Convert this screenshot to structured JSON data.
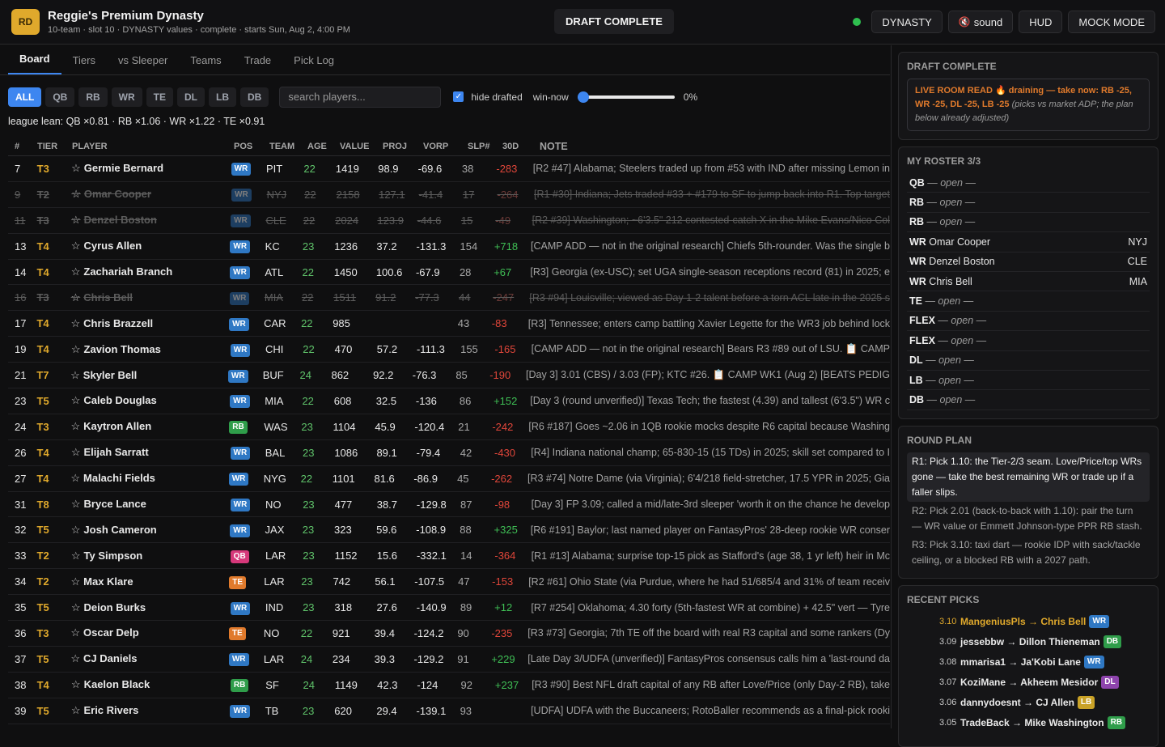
{
  "header": {
    "logo": "RD",
    "title": "Reggie's Premium Dynasty",
    "subtitle": "10-team · slot 10 · DYNASTY values · complete · starts Sun, Aug 2, 4:00 PM",
    "status_pill": "DRAFT COMPLETE",
    "btn_dynasty": "DYNASTY",
    "btn_sound": "sound",
    "btn_hud": "HUD",
    "btn_mock": "MOCK MODE",
    "status_dot_color": "#2fbf4f"
  },
  "tabs": [
    "Board",
    "Tiers",
    "vs Sleeper",
    "Teams",
    "Trade",
    "Pick Log"
  ],
  "filters": [
    "ALL",
    "QB",
    "RB",
    "WR",
    "TE",
    "DL",
    "LB",
    "DB"
  ],
  "search_placeholder": "search players...",
  "hide_drafted": "hide drafted",
  "win_now_label": "win-now",
  "win_now_value": "0%",
  "win_now_fraction": 0,
  "league_lean": "league lean: QB ×0.81 · RB ×1.06 · WR ×1.22 · TE ×0.91",
  "columns": [
    "#",
    "TIER",
    "PLAYER",
    "POS",
    "TEAM",
    "AGE",
    "VALUE",
    "PROJ",
    "VORP",
    "SLP#",
    "30D",
    "NOTE"
  ],
  "pos_colors": {
    "WR": "#2f78c4",
    "RB": "#2f9d4a",
    "QB": "#d6387a",
    "TE": "#e07a2c"
  },
  "rows": [
    {
      "n": "7",
      "tier": "T3",
      "player": "Germie Bernard",
      "pos": "WR",
      "team": "PIT",
      "age": "22",
      "value": "1419",
      "proj": "98.9",
      "vorp": "-69.6",
      "slp": "38",
      "d30": "-283",
      "note": "[R2 #47] Alabama; Steelers traded up from #53 with IND after missing Lemon in",
      "drafted": false
    },
    {
      "n": "9",
      "tier": "T2",
      "player": "Omar Cooper",
      "pos": "WR",
      "team": "NYJ",
      "age": "22",
      "value": "2158",
      "proj": "127.1",
      "vorp": "-41.4",
      "slp": "17",
      "d30": "-264",
      "note": "[R1 #30] Indiana; Jets traded #33 + #179 to SF to jump back into R1. Top target",
      "drafted": true
    },
    {
      "n": "11",
      "tier": "T3",
      "player": "Denzel Boston",
      "pos": "WR",
      "team": "CLE",
      "age": "22",
      "value": "2024",
      "proj": "123.9",
      "vorp": "-44.6",
      "slp": "15",
      "d30": "-49",
      "note": "[R2 #39] Washington; ~6'3.5\" 212 contested-catch X in the Mike Evans/Nico Col",
      "drafted": true
    },
    {
      "n": "13",
      "tier": "T4",
      "player": "Cyrus Allen",
      "pos": "WR",
      "team": "KC",
      "age": "23",
      "value": "1236",
      "proj": "37.2",
      "vorp": "-131.3",
      "slp": "154",
      "d30": "+718",
      "note": "[CAMP ADD — not in the original research] Chiefs 5th-rounder. Was the single b",
      "drafted": false
    },
    {
      "n": "14",
      "tier": "T4",
      "player": "Zachariah Branch",
      "pos": "WR",
      "team": "ATL",
      "age": "22",
      "value": "1450",
      "proj": "100.6",
      "vorp": "-67.9",
      "slp": "28",
      "d30": "+67",
      "note": "[R3] Georgia (ex-USC); set UGA single-season receptions record (81) in 2025; e",
      "drafted": false
    },
    {
      "n": "16",
      "tier": "T3",
      "player": "Chris Bell",
      "pos": "WR",
      "team": "MIA",
      "age": "22",
      "value": "1511",
      "proj": "91.2",
      "vorp": "-77.3",
      "slp": "44",
      "d30": "-247",
      "note": "[R3 #94] Louisville; viewed as Day 1-2 talent before a torn ACL late in the 2025 s",
      "drafted": true
    },
    {
      "n": "17",
      "tier": "T4",
      "player": "Chris Brazzell",
      "pos": "WR",
      "team": "CAR",
      "age": "22",
      "value": "985",
      "proj": "",
      "vorp": "",
      "slp": "43",
      "d30": "-83",
      "note": "[R3] Tennessee; enters camp battling Xavier Legette for the WR3 job behind lock",
      "drafted": false
    },
    {
      "n": "19",
      "tier": "T4",
      "player": "Zavion Thomas",
      "pos": "WR",
      "team": "CHI",
      "age": "22",
      "value": "470",
      "proj": "57.2",
      "vorp": "-111.3",
      "slp": "155",
      "d30": "-165",
      "note": "[CAMP ADD — not in the original research] Bears R3 #89 out of LSU. 📋 CAMP",
      "drafted": false
    },
    {
      "n": "21",
      "tier": "T7",
      "player": "Skyler Bell",
      "pos": "WR",
      "team": "BUF",
      "age": "24",
      "value": "862",
      "proj": "92.2",
      "vorp": "-76.3",
      "slp": "85",
      "d30": "-190",
      "note": "[Day 3] 3.01 (CBS) / 3.03 (FP); KTC #26. 📋 CAMP WK1 (Aug 2) [BEATS PEDIG",
      "drafted": false
    },
    {
      "n": "23",
      "tier": "T5",
      "player": "Caleb Douglas",
      "pos": "WR",
      "team": "MIA",
      "age": "22",
      "value": "608",
      "proj": "32.5",
      "vorp": "-136",
      "slp": "86",
      "d30": "+152",
      "note": "[Day 3 (round unverified)] Texas Tech; the fastest (4.39) and tallest (6'3.5\") WR c",
      "drafted": false
    },
    {
      "n": "24",
      "tier": "T3",
      "player": "Kaytron Allen",
      "pos": "RB",
      "team": "WAS",
      "age": "23",
      "value": "1104",
      "proj": "45.9",
      "vorp": "-120.4",
      "slp": "21",
      "d30": "-242",
      "note": "[R6 #187] Goes ~2.06 in 1QB rookie mocks despite R6 capital because Washing",
      "drafted": false
    },
    {
      "n": "26",
      "tier": "T4",
      "player": "Elijah Sarratt",
      "pos": "WR",
      "team": "BAL",
      "age": "23",
      "value": "1086",
      "proj": "89.1",
      "vorp": "-79.4",
      "slp": "42",
      "d30": "-430",
      "note": "[R4] Indiana national champ; 65-830-15 (15 TDs) in 2025; skill set compared to I",
      "drafted": false
    },
    {
      "n": "27",
      "tier": "T4",
      "player": "Malachi Fields",
      "pos": "WR",
      "team": "NYG",
      "age": "22",
      "value": "1101",
      "proj": "81.6",
      "vorp": "-86.9",
      "slp": "45",
      "d30": "-262",
      "note": "[R3 #74] Notre Dame (via Virginia); 6'4/218 field-stretcher, 17.5 YPR in 2025; Gia",
      "drafted": false
    },
    {
      "n": "31",
      "tier": "T8",
      "player": "Bryce Lance",
      "pos": "WR",
      "team": "NO",
      "age": "23",
      "value": "477",
      "proj": "38.7",
      "vorp": "-129.8",
      "slp": "87",
      "d30": "-98",
      "note": "[Day 3] FP 3.09; called a mid/late-3rd sleeper 'worth it on the chance he develop",
      "drafted": false
    },
    {
      "n": "32",
      "tier": "T5",
      "player": "Josh Cameron",
      "pos": "WR",
      "team": "JAX",
      "age": "23",
      "value": "323",
      "proj": "59.6",
      "vorp": "-108.9",
      "slp": "88",
      "d30": "+325",
      "note": "[R6 #191] Baylor; last named player on FantasyPros' 28-deep rookie WR conser",
      "drafted": false
    },
    {
      "n": "33",
      "tier": "T2",
      "player": "Ty Simpson",
      "pos": "QB",
      "team": "LAR",
      "age": "23",
      "value": "1152",
      "proj": "15.6",
      "vorp": "-332.1",
      "slp": "14",
      "d30": "-364",
      "note": "[R1 #13] Alabama; surprise top-15 pick as Stafford's (age 38, 1 yr left) heir in Mc",
      "drafted": false
    },
    {
      "n": "34",
      "tier": "T2",
      "player": "Max Klare",
      "pos": "TE",
      "team": "LAR",
      "age": "23",
      "value": "742",
      "proj": "56.1",
      "vorp": "-107.5",
      "slp": "47",
      "d30": "-153",
      "note": "[R2 #61] Ohio State (via Purdue, where he had 51/685/4 and 31% of team receiv",
      "drafted": false
    },
    {
      "n": "35",
      "tier": "T5",
      "player": "Deion Burks",
      "pos": "WR",
      "team": "IND",
      "age": "23",
      "value": "318",
      "proj": "27.6",
      "vorp": "-140.9",
      "slp": "89",
      "d30": "+12",
      "note": "[R7 #254] Oklahoma; 4.30 forty (5th-fastest WR at combine) + 42.5\" vert — Tyre",
      "drafted": false
    },
    {
      "n": "36",
      "tier": "T3",
      "player": "Oscar Delp",
      "pos": "TE",
      "team": "NO",
      "age": "22",
      "value": "921",
      "proj": "39.4",
      "vorp": "-124.2",
      "slp": "90",
      "d30": "-235",
      "note": "[R3 #73] Georgia; 7th TE off the board with real R3 capital and some rankers (Dy",
      "drafted": false
    },
    {
      "n": "37",
      "tier": "T5",
      "player": "CJ Daniels",
      "pos": "WR",
      "team": "LAR",
      "age": "24",
      "value": "234",
      "proj": "39.3",
      "vorp": "-129.2",
      "slp": "91",
      "d30": "+229",
      "note": "[Late Day 3/UDFA (unverified)] FantasyPros consensus calls him a 'last-round da",
      "drafted": false
    },
    {
      "n": "38",
      "tier": "T4",
      "player": "Kaelon Black",
      "pos": "RB",
      "team": "SF",
      "age": "24",
      "value": "1149",
      "proj": "42.3",
      "vorp": "-124",
      "slp": "92",
      "d30": "+237",
      "note": "[R3 #90] Best NFL draft capital of any RB after Love/Price (only Day-2 RB), take",
      "drafted": false
    },
    {
      "n": "39",
      "tier": "T5",
      "player": "Eric Rivers",
      "pos": "WR",
      "team": "TB",
      "age": "23",
      "value": "620",
      "proj": "29.4",
      "vorp": "-139.1",
      "slp": "93",
      "d30": "",
      "note": "[UDFA] UDFA with the Buccaneers; RotoBaller recommends as a final-pick rooki",
      "drafted": false
    }
  ],
  "status_card": {
    "title": "DRAFT COMPLETE",
    "lrr_key": "LIVE ROOM READ 🔥 draining — take now: RB -25, WR -25, DL -25, LB -25",
    "lrr_note": "(picks vs market ADP; the plan below already adjusted)"
  },
  "roster": {
    "title": "MY ROSTER 3/3",
    "slots": [
      {
        "pos": "QB",
        "name": "— open —",
        "team": "",
        "open": true
      },
      {
        "pos": "RB",
        "name": "— open —",
        "team": "",
        "open": true
      },
      {
        "pos": "RB",
        "name": "— open —",
        "team": "",
        "open": true
      },
      {
        "pos": "WR",
        "name": "Omar Cooper",
        "team": "NYJ",
        "open": false
      },
      {
        "pos": "WR",
        "name": "Denzel Boston",
        "team": "CLE",
        "open": false
      },
      {
        "pos": "WR",
        "name": "Chris Bell",
        "team": "MIA",
        "open": false
      },
      {
        "pos": "TE",
        "name": "— open —",
        "team": "",
        "open": true
      },
      {
        "pos": "FLEX",
        "name": "— open —",
        "team": "",
        "open": true
      },
      {
        "pos": "FLEX",
        "name": "— open —",
        "team": "",
        "open": true
      },
      {
        "pos": "DL",
        "name": "— open —",
        "team": "",
        "open": true
      },
      {
        "pos": "LB",
        "name": "— open —",
        "team": "",
        "open": true
      },
      {
        "pos": "DB",
        "name": "— open —",
        "team": "",
        "open": true
      }
    ]
  },
  "round_plan": {
    "title": "ROUND PLAN",
    "items": [
      "R1: Pick 1.10: the Tier-2/3 seam. Love/Price/top WRs gone — take the best remaining WR or trade up if a faller slips.",
      "R2: Pick 2.01 (back-to-back with 1.10): pair the turn — WR value or Emmett Johnson-type PPR RB stash.",
      "R3: Pick 3.10: taxi dart — rookie IDP with sack/tackle ceiling, or a blocked RB with a 2027 path."
    ]
  },
  "recent": {
    "title": "RECENT PICKS",
    "picks": [
      {
        "pick": "3.10",
        "text": "MangeniusPls → Chris Bell",
        "pos": "WR",
        "mine": true
      },
      {
        "pick": "3.09",
        "text": "jessebbw → Dillon Thieneman",
        "pos": "DB",
        "mine": false
      },
      {
        "pick": "3.08",
        "text": "mmarisa1 → Ja'Kobi Lane",
        "pos": "WR",
        "mine": false
      },
      {
        "pick": "3.07",
        "text": "KoziMane → Akheem Mesidor",
        "pos": "DL",
        "mine": false
      },
      {
        "pick": "3.06",
        "text": "dannydoesnt → CJ Allen",
        "pos": "LB",
        "mine": false
      },
      {
        "pick": "3.05",
        "text": "TradeBack → Mike Washington",
        "pos": "RB",
        "mine": false
      }
    ]
  },
  "badge_colors": {
    "WR": "#2f78c4",
    "RB": "#2f9d4a",
    "QB": "#d6387a",
    "TE": "#e07a2c",
    "DB": "#2f9d4a",
    "DL": "#8e44ad",
    "LB": "#c9a227"
  }
}
